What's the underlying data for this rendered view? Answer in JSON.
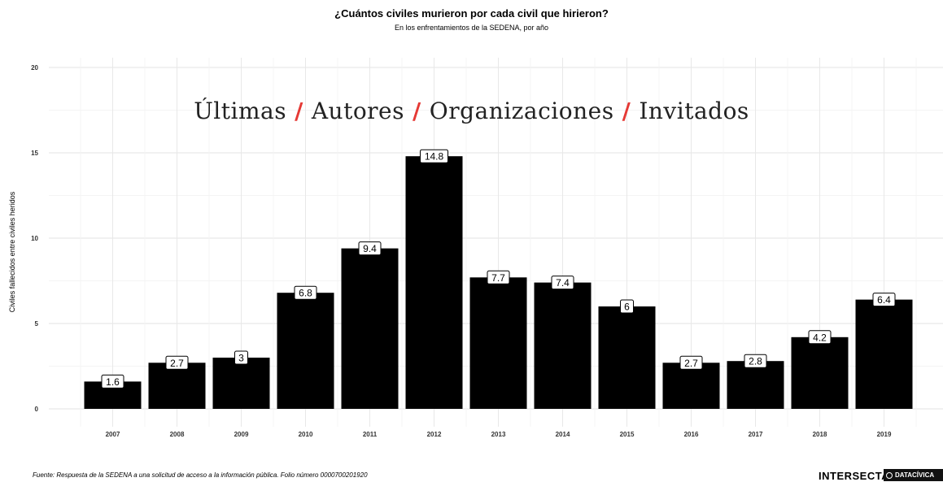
{
  "chart_data": {
    "type": "bar",
    "title": "¿Cuántos civiles murieron por cada civil que hirieron?",
    "subtitle": "En los enfrentamientos de la SEDENA, por año",
    "ylabel": "Civiles fallecidos entre civiles heridos",
    "xlabel": "",
    "categories": [
      "2007",
      "2008",
      "2009",
      "2010",
      "2011",
      "2012",
      "2013",
      "2014",
      "2015",
      "2016",
      "2017",
      "2018",
      "2019"
    ],
    "values": [
      1.6,
      2.7,
      3,
      6.8,
      9.4,
      14.8,
      7.7,
      7.4,
      6,
      2.7,
      2.8,
      4.2,
      6.4
    ],
    "value_labels": [
      "1.6",
      "2.7",
      "3",
      "6.8",
      "9.4",
      "14.8",
      "7.7",
      "7.4",
      "6",
      "2.7",
      "2.8",
      "4.2",
      "6.4"
    ],
    "yticks": [
      "0",
      "5",
      "10",
      "15",
      "20"
    ],
    "ylim": [
      0,
      20
    ],
    "grid": true,
    "bar_color": "#000000",
    "source": "Fuente: Respuesta de la SEDENA a una solicitud de acceso a la información pública. Folio número 0000700201920"
  },
  "nav": {
    "items": [
      "Últimas",
      "Autores",
      "Organizaciones",
      "Invitados"
    ],
    "separator": "/",
    "separator_color": "#e53935"
  },
  "logos": {
    "primary": "INTERSECTA",
    "secondary": "DATACÍVICA"
  }
}
